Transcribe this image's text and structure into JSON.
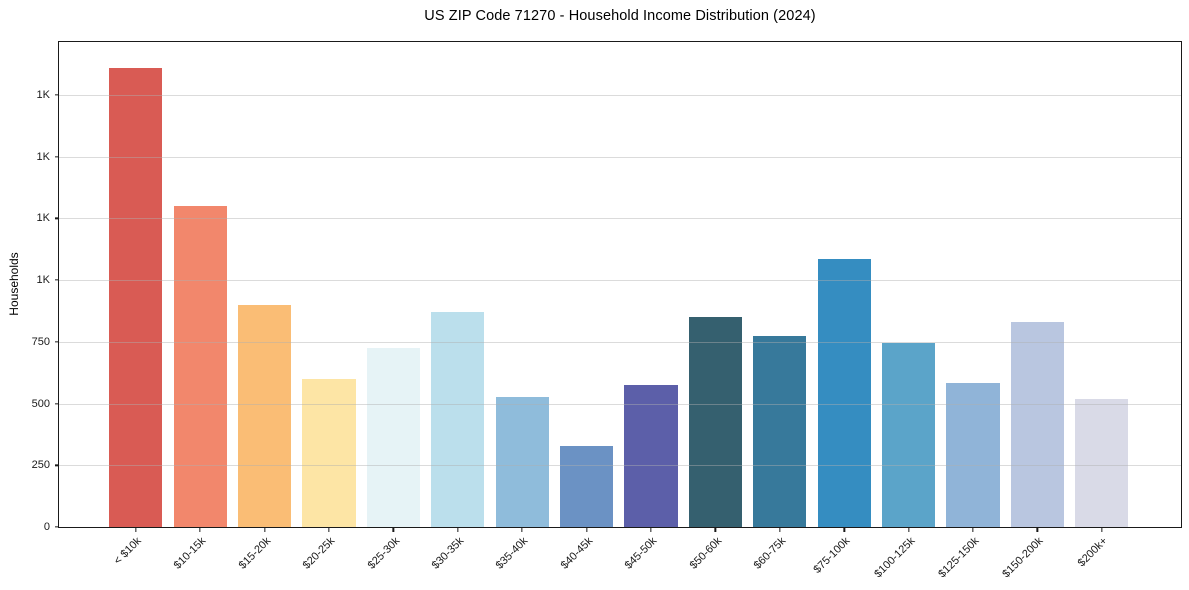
{
  "chart_data": {
    "type": "bar",
    "title": "US ZIP Code 71270 - Household Income Distribution (2024)",
    "xlabel": "",
    "ylabel": "Households",
    "categories": [
      "< $10k",
      "$10-15k",
      "$15-20k",
      "$20-25k",
      "$25-30k",
      "$30-35k",
      "$35-40k",
      "$40-45k",
      "$45-50k",
      "$50-60k",
      "$60-75k",
      "$75-100k",
      "$100-125k",
      "$125-150k",
      "$150-200k",
      "$200k+"
    ],
    "values": [
      1860,
      1300,
      900,
      600,
      725,
      870,
      525,
      330,
      575,
      850,
      775,
      1085,
      745,
      585,
      830,
      520
    ],
    "bar_colors": [
      "#d95b54",
      "#f2876c",
      "#fabd75",
      "#fde5a5",
      "#e6f3f6",
      "#bbdfec",
      "#8fbcdb",
      "#6b92c4",
      "#5c5fa9",
      "#35606f",
      "#37799b",
      "#358dc1",
      "#5ba4c9",
      "#90b4d8",
      "#b9c6e0",
      "#d9dae7"
    ],
    "ylim": [
      0,
      1965
    ],
    "yticks": [
      {
        "value": 0,
        "label": "0"
      },
      {
        "value": 250,
        "label": "250"
      },
      {
        "value": 500,
        "label": "500"
      },
      {
        "value": 750,
        "label": "750"
      },
      {
        "value": 1000,
        "label": "1K"
      },
      {
        "value": 1250,
        "label": "1K"
      },
      {
        "value": 1500,
        "label": "1K"
      },
      {
        "value": 1750,
        "label": "1K"
      }
    ],
    "grid": "horizontal",
    "legend": "none",
    "background": "#ffffff",
    "spine_color": "#1a1a1a",
    "grid_color": "#b0b0b0"
  },
  "layout_hints": {
    "bar_center_start_pct": 6.843,
    "bar_center_step_pct": 5.74,
    "bar_width_pct": 4.743
  }
}
